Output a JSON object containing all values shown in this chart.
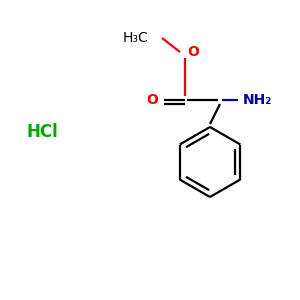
{
  "bg_color": "#FFFFFF",
  "bond_color": "#000000",
  "oxygen_color": "#FF0000",
  "nitrogen_color": "#0000AA",
  "hcl_color": "#00AA00",
  "figsize": [
    3.0,
    3.0
  ],
  "dpi": 100,
  "ch3_text": "H₃C",
  "o_ester_text": "O",
  "o_carbonyl_text": "O",
  "nh2_text": "NH₂",
  "hcl_text": "HCl",
  "lw": 1.6,
  "fs": 10,
  "hcl_fs": 12
}
